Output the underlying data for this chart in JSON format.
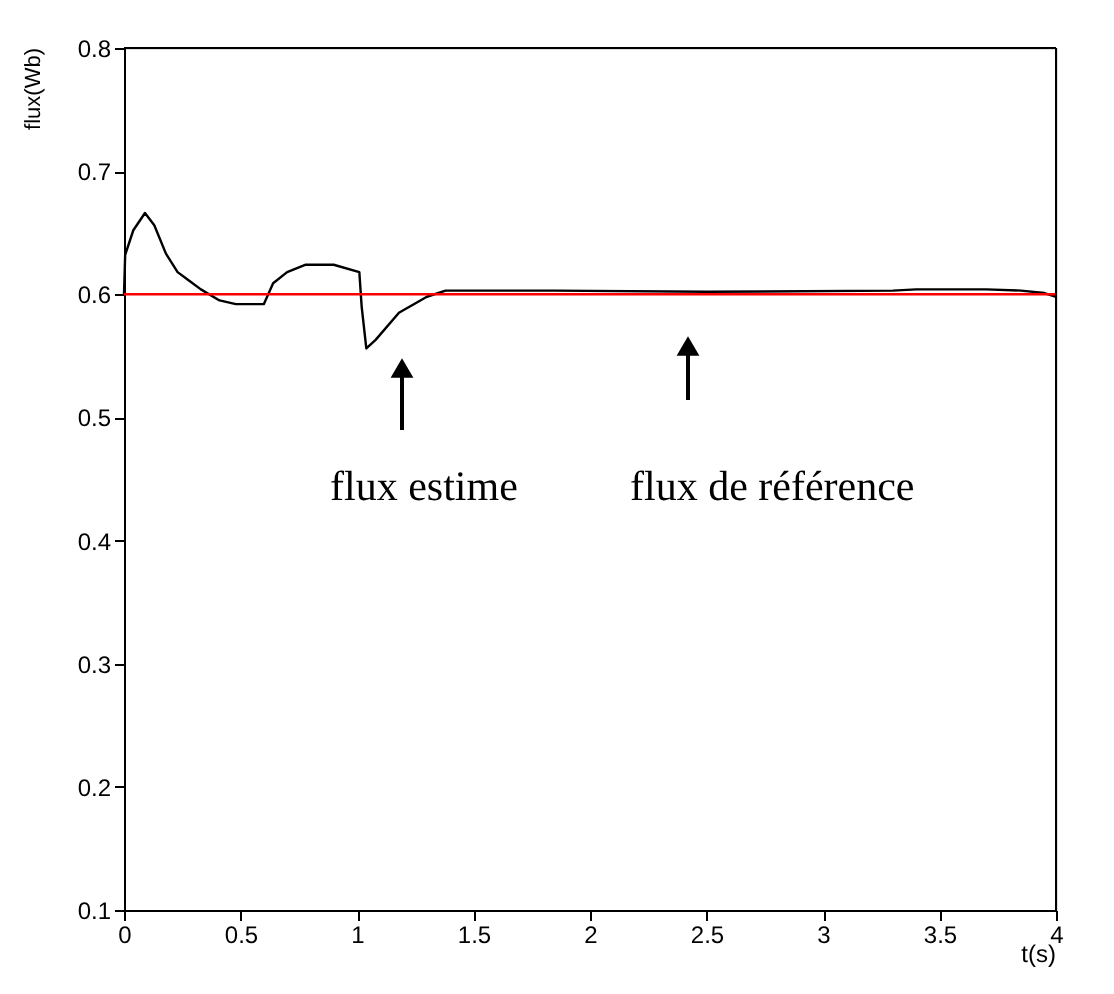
{
  "chart_data": {
    "type": "line",
    "xlabel": "t(s)",
    "ylabel": "flux(Wb)",
    "xlim": [
      0,
      4
    ],
    "xticks": [
      0,
      0.5,
      1,
      1.5,
      2,
      2.5,
      3,
      3.5,
      4
    ],
    "ylim": [
      0.1,
      0.8
    ],
    "yticks": [
      0.1,
      0.2,
      0.3,
      0.4,
      0.5,
      0.6,
      0.7,
      0.8
    ],
    "grid": false,
    "marker": "none",
    "line_style": "solid",
    "series": [
      {
        "color": "#000000",
        "x": [
          0,
          0.005,
          0.04,
          0.09,
          0.13,
          0.18,
          0.23,
          0.28,
          0.33,
          0.41,
          0.48,
          0.6,
          0.64,
          0.7,
          0.78,
          0.9,
          1.01,
          1.02,
          1.04,
          1.08,
          1.18,
          1.3,
          1.38,
          1.85,
          2.5,
          3.3,
          3.4,
          3.7,
          3.85,
          3.95,
          4
        ],
        "values": [
          0.6,
          0.632,
          0.652,
          0.666,
          0.656,
          0.633,
          0.618,
          0.611,
          0.604,
          0.595,
          0.592,
          0.592,
          0.609,
          0.618,
          0.624,
          0.624,
          0.618,
          0.59,
          0.556,
          0.563,
          0.585,
          0.598,
          0.603,
          0.603,
          0.602,
          0.603,
          0.604,
          0.604,
          0.603,
          0.601,
          0.598
        ]
      }
    ],
    "ref_lines": [
      {
        "axis": "y",
        "value": 0.6,
        "color": "#ff0000",
        "line_style": "solid"
      }
    ],
    "annotations": [
      "flux estime",
      "flux de référence"
    ]
  }
}
